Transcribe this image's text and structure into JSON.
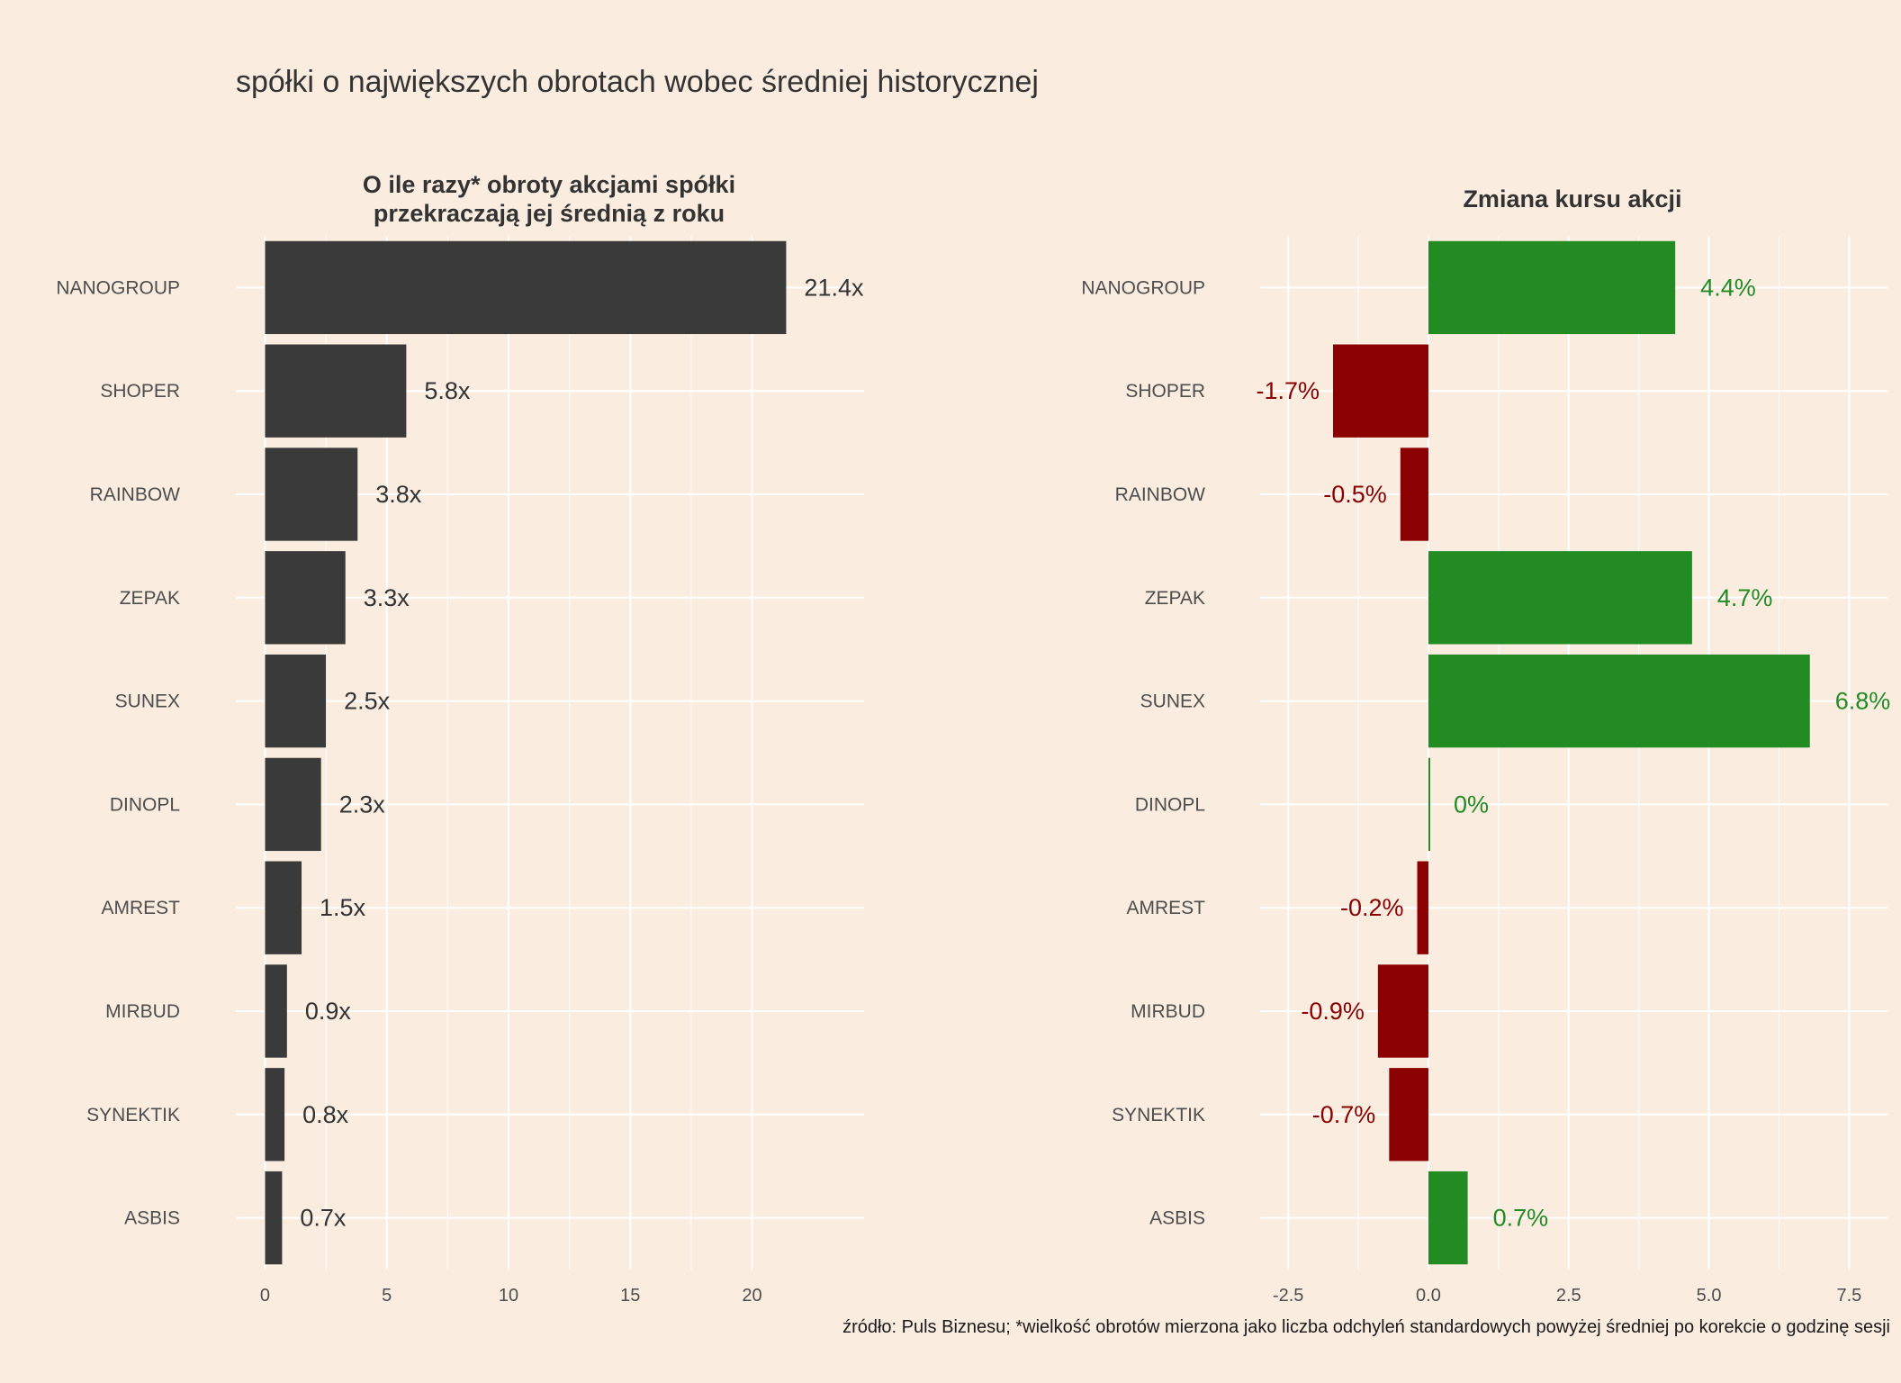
{
  "title": "spółki o największych obrotach wobec średniej historycznej",
  "caption": "źródło: Puls Biznesu; *wielkość obrotów mierzona jako liczba odchyleń standardowych powyżej średniej po korekcie o godzinę sesji",
  "colors": {
    "background": "#faede0",
    "grid": "#ffffff",
    "bar_left": "#3a3a3a",
    "positive": "#228b22",
    "negative": "#8b0000",
    "text": "#333333"
  },
  "chart_data": [
    {
      "type": "bar",
      "orientation": "horizontal",
      "title": "O ile razy* obroty akcjami spółki\nprzekraczają jej średnią z roku",
      "title_lines": [
        "O ile razy* obroty akcjami spółki",
        "przekraczają jej średnią z roku"
      ],
      "categories": [
        "NANOGROUP",
        "SHOPER",
        "RAINBOW",
        "ZEPAK",
        "SUNEX",
        "DINOPL",
        "AMREST",
        "MIRBUD",
        "SYNEKTIK",
        "ASBIS"
      ],
      "values": [
        21.4,
        5.8,
        3.8,
        3.3,
        2.5,
        2.3,
        1.5,
        0.9,
        0.8,
        0.7
      ],
      "labels": [
        "21.4x",
        "5.8x",
        "3.8x",
        "3.3x",
        "2.5x",
        "2.3x",
        "1.5x",
        "0.9x",
        "0.8x",
        "0.7x"
      ],
      "xlim": [
        -1.2,
        24.6
      ],
      "xticks": [
        0,
        5,
        10,
        15,
        20
      ],
      "xtick_labels": [
        "0",
        "5",
        "10",
        "15",
        "20"
      ],
      "grid": true
    },
    {
      "type": "bar",
      "orientation": "horizontal",
      "title": "Zmiana kursu akcji",
      "categories": [
        "NANOGROUP",
        "SHOPER",
        "RAINBOW",
        "ZEPAK",
        "SUNEX",
        "DINOPL",
        "AMREST",
        "MIRBUD",
        "SYNEKTIK",
        "ASBIS"
      ],
      "values": [
        4.4,
        -1.7,
        -0.5,
        4.7,
        6.8,
        0,
        -0.2,
        -0.9,
        -0.7,
        0.7
      ],
      "labels": [
        "4.4%",
        "-1.7%",
        "-0.5%",
        "4.7%",
        "6.8%",
        "0%",
        "-0.2%",
        "-0.9%",
        "-0.7%",
        "0.7%"
      ],
      "xlim": [
        -3.0,
        8.2
      ],
      "xticks": [
        -2.5,
        0,
        2.5,
        5,
        7.5
      ],
      "xtick_labels": [
        "-2.5",
        "0.0",
        "2.5",
        "5.0",
        "7.5"
      ],
      "grid": true
    }
  ]
}
